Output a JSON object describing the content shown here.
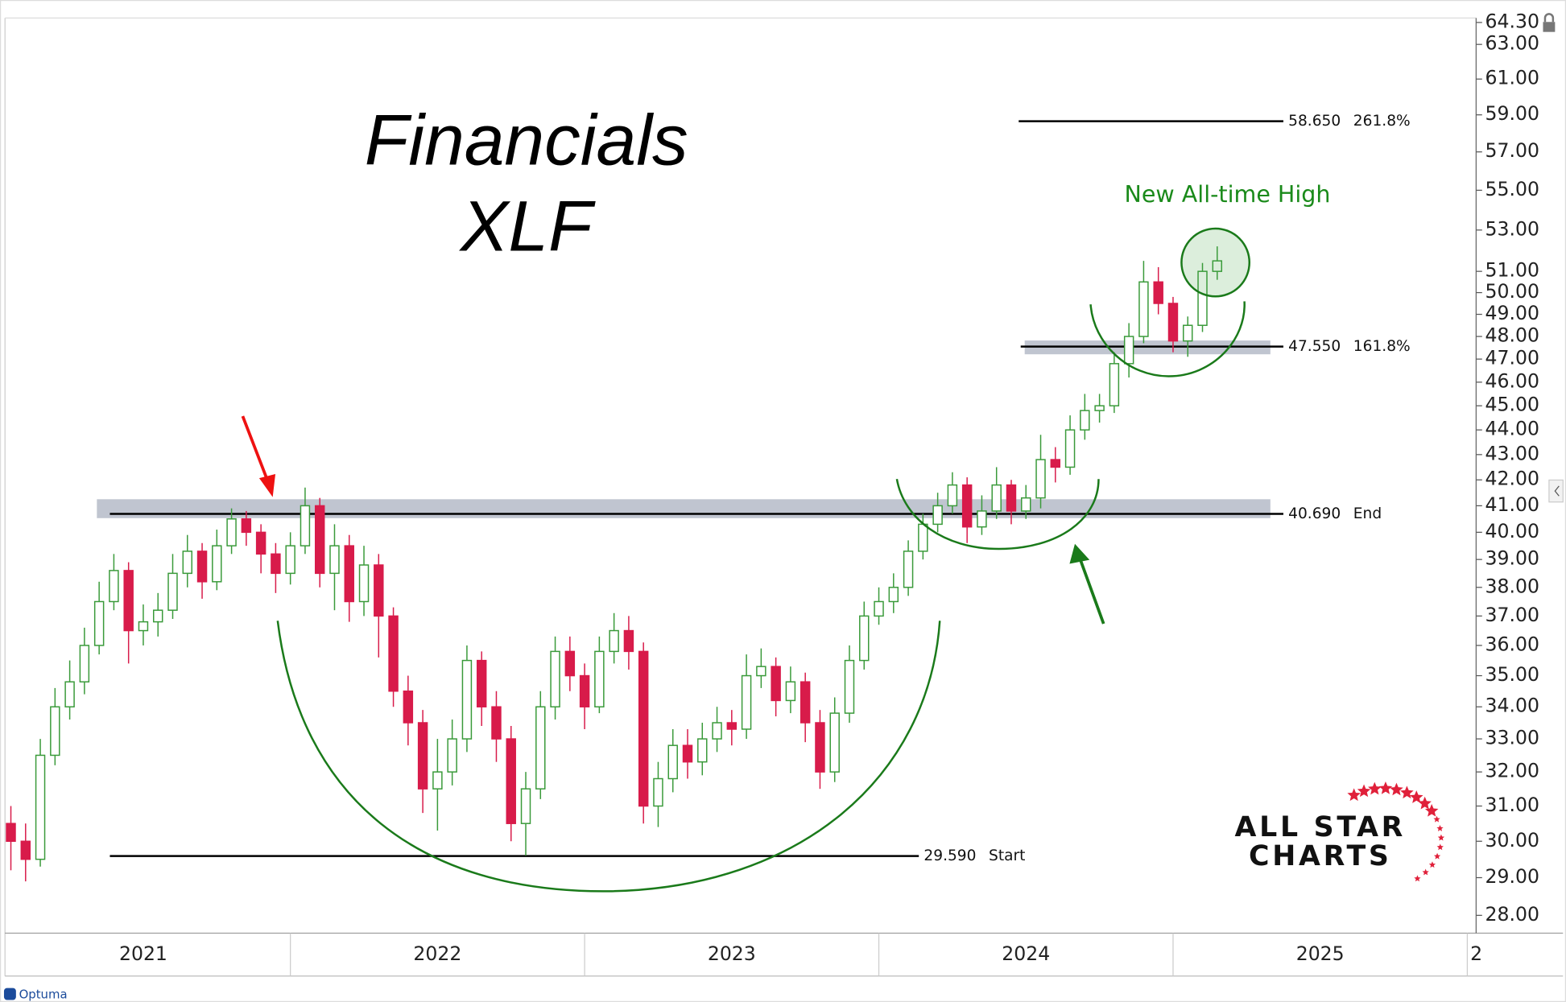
{
  "chart_data": {
    "type": "candlestick",
    "title": "Financials",
    "subtitle": "XLF",
    "annotation": "New All-time High",
    "logo": [
      "ALL STAR",
      "CHARTS"
    ],
    "footer": "Optuma",
    "log": true,
    "grid": false,
    "up_color": "#3a9a3a",
    "down_color": "#d81b4a",
    "xlim": [
      2021.03,
      2026.03
    ],
    "xticks": [
      2021,
      2022,
      2023,
      2024,
      2025,
      {
        "value": 2026,
        "label": "2"
      }
    ],
    "ylim": [
      27.54,
      64.57
    ],
    "yticks": [
      {
        "value": 28,
        "label": "28.00"
      },
      {
        "value": 29,
        "label": "29.00"
      },
      {
        "value": 30,
        "label": "30.00"
      },
      {
        "value": 31,
        "label": "31.00"
      },
      {
        "value": 32,
        "label": "32.00"
      },
      {
        "value": 33,
        "label": "33.00"
      },
      {
        "value": 34,
        "label": "34.00"
      },
      {
        "value": 35,
        "label": "35.00"
      },
      {
        "value": 36,
        "label": "36.00"
      },
      {
        "value": 37,
        "label": "37.00"
      },
      {
        "value": 38,
        "label": "38.00"
      },
      {
        "value": 39,
        "label": "39.00"
      },
      {
        "value": 40,
        "label": "40.00"
      },
      {
        "value": 41,
        "label": "41.00"
      },
      {
        "value": 42,
        "label": "42.00"
      },
      {
        "value": 43,
        "label": "43.00"
      },
      {
        "value": 44,
        "label": "44.00"
      },
      {
        "value": 45,
        "label": "45.00"
      },
      {
        "value": 46,
        "label": "46.00"
      },
      {
        "value": 47,
        "label": "47.00"
      },
      {
        "value": 48,
        "label": "48.00"
      },
      {
        "value": 49,
        "label": "49.00"
      },
      {
        "value": 50,
        "label": "50.00"
      },
      {
        "value": 51,
        "label": "51.00"
      },
      {
        "value": 53,
        "label": "53.00"
      },
      {
        "value": 55,
        "label": "55.00"
      },
      {
        "value": 57,
        "label": "57.00"
      },
      {
        "value": 59,
        "label": "59.00"
      },
      {
        "value": 61,
        "label": "61.00"
      },
      {
        "value": 63,
        "label": "63.00"
      },
      {
        "value": 64.3,
        "label": "64.30"
      }
    ],
    "levels": [
      {
        "value": 58.65,
        "value_label": "58.650",
        "label": "261.8%"
      },
      {
        "value": 47.55,
        "value_label": "47.550",
        "label": "161.8%"
      },
      {
        "value": 40.69,
        "value_label": "40.690",
        "label": "End"
      },
      {
        "value": 29.59,
        "value_label": "29.590",
        "label": "Start"
      }
    ],
    "zones": [
      {
        "from": 47.21,
        "to": 47.82
      },
      {
        "from": 40.53,
        "to": 41.25
      }
    ],
    "x": [
      2021.05,
      2021.1,
      2021.15,
      2021.2,
      2021.25,
      2021.3,
      2021.35,
      2021.4,
      2021.45,
      2021.5,
      2021.55,
      2021.6,
      2021.65,
      2021.7,
      2021.75,
      2021.8,
      2021.85,
      2021.9,
      2021.95,
      2022.0,
      2022.05,
      2022.1,
      2022.15,
      2022.2,
      2022.25,
      2022.3,
      2022.35,
      2022.4,
      2022.45,
      2022.5,
      2022.55,
      2022.6,
      2022.65,
      2022.7,
      2022.75,
      2022.8,
      2022.85,
      2022.9,
      2022.95,
      2023.0,
      2023.05,
      2023.1,
      2023.15,
      2023.2,
      2023.25,
      2023.3,
      2023.35,
      2023.4,
      2023.45,
      2023.5,
      2023.55,
      2023.6,
      2023.65,
      2023.7,
      2023.75,
      2023.8,
      2023.85,
      2023.9,
      2023.95,
      2024.0,
      2024.05,
      2024.1,
      2024.15,
      2024.2,
      2024.25,
      2024.3,
      2024.35,
      2024.4,
      2024.45,
      2024.5,
      2024.55,
      2024.6,
      2024.65,
      2024.7,
      2024.75,
      2024.8,
      2024.85,
      2024.9,
      2024.95,
      2025.0,
      2025.05,
      2025.1,
      2025.15
    ],
    "open": [
      30.5,
      30,
      29.5,
      32.5,
      34,
      34.8,
      36,
      37.5,
      38.6,
      36.5,
      36.8,
      37.2,
      38.5,
      39.3,
      38.2,
      39.5,
      40.5,
      40,
      39.2,
      38.5,
      39.5,
      41,
      38.5,
      39.5,
      37.5,
      38.8,
      37,
      34.5,
      33.5,
      31.5,
      32,
      33,
      35.5,
      34,
      33,
      30.5,
      31.5,
      34,
      35.8,
      35,
      34,
      35.8,
      36.5,
      35.8,
      31,
      31.8,
      32.8,
      32.3,
      33,
      33.5,
      33.3,
      35,
      35.3,
      34.2,
      34.8,
      33.5,
      32,
      33.8,
      35.5,
      37,
      37.5,
      38,
      39.3,
      40.3,
      41,
      41.8,
      40.2,
      40.8,
      41.8,
      40.8,
      41.3,
      42.8,
      42.5,
      44,
      44.8,
      45,
      46.8,
      48,
      50.5,
      49.5,
      47.8,
      48.5,
      51
    ],
    "high": [
      31,
      30.5,
      33,
      34.6,
      35.5,
      36.6,
      38.2,
      39.2,
      38.9,
      37.4,
      37.8,
      39.2,
      39.9,
      39.6,
      40.1,
      40.9,
      40.8,
      40.3,
      39.6,
      40,
      41.7,
      41.3,
      40.3,
      39.9,
      39.5,
      39.2,
      37.3,
      35,
      33.9,
      33,
      33.6,
      36,
      35.8,
      34.5,
      33.4,
      32,
      34.5,
      36.3,
      36.3,
      35.4,
      36.3,
      37.1,
      37,
      36.1,
      32.3,
      33.3,
      33.3,
      33.5,
      34,
      33.9,
      35.7,
      35.9,
      35.6,
      35.3,
      35.1,
      33.9,
      34.3,
      36,
      37.5,
      38,
      38.5,
      39.7,
      40.7,
      41.5,
      42.3,
      42.1,
      41.4,
      42.5,
      42,
      41.8,
      43.8,
      43.3,
      44.6,
      45.5,
      45.5,
      47.3,
      48.6,
      51.5,
      51.2,
      49.8,
      48.9,
      51.4,
      52.2
    ],
    "low": [
      29.2,
      28.9,
      29.3,
      32.2,
      33.6,
      34.4,
      35.7,
      37.2,
      35.4,
      36,
      36.3,
      36.9,
      38,
      37.6,
      37.9,
      39.2,
      39.5,
      38.5,
      37.8,
      38.1,
      39.2,
      38,
      37.2,
      36.8,
      37,
      35.6,
      34,
      32.8,
      30.8,
      30.3,
      31.6,
      32.6,
      33.4,
      32.3,
      30,
      29.6,
      31.2,
      33.6,
      34.5,
      33.3,
      33.8,
      35.4,
      35.2,
      30.5,
      30.4,
      31.4,
      31.8,
      31.9,
      32.6,
      32.8,
      33,
      34.6,
      33.7,
      33.8,
      32.9,
      31.5,
      31.7,
      33.5,
      35.2,
      36.7,
      37.1,
      37.7,
      39,
      40,
      40.7,
      39.6,
      39.9,
      40.5,
      40.3,
      40.5,
      40.9,
      41.9,
      42.2,
      43.6,
      44.3,
      44.7,
      46.2,
      47.7,
      49,
      47.3,
      47.1,
      48.2,
      50.6
    ],
    "close": [
      30,
      29.5,
      32.5,
      34,
      34.8,
      36,
      37.5,
      38.6,
      36.5,
      36.8,
      37.2,
      38.5,
      39.3,
      38.2,
      39.5,
      40.5,
      40,
      39.2,
      38.5,
      39.5,
      41,
      38.5,
      39.5,
      37.5,
      38.8,
      37,
      34.5,
      33.5,
      31.5,
      32,
      33,
      35.5,
      34,
      33,
      30.5,
      31.5,
      34,
      35.8,
      35,
      34,
      35.8,
      36.5,
      35.8,
      31,
      31.8,
      32.8,
      32.3,
      33,
      33.5,
      33.3,
      35,
      35.3,
      34.2,
      34.8,
      33.5,
      32,
      33.8,
      35.5,
      37,
      37.5,
      38,
      39.3,
      40.3,
      41,
      41.8,
      40.2,
      40.8,
      41.8,
      40.8,
      41.3,
      42.8,
      42.5,
      44,
      44.8,
      45,
      46.8,
      48,
      50.5,
      49.5,
      47.8,
      48.5,
      51,
      51.5
    ]
  }
}
